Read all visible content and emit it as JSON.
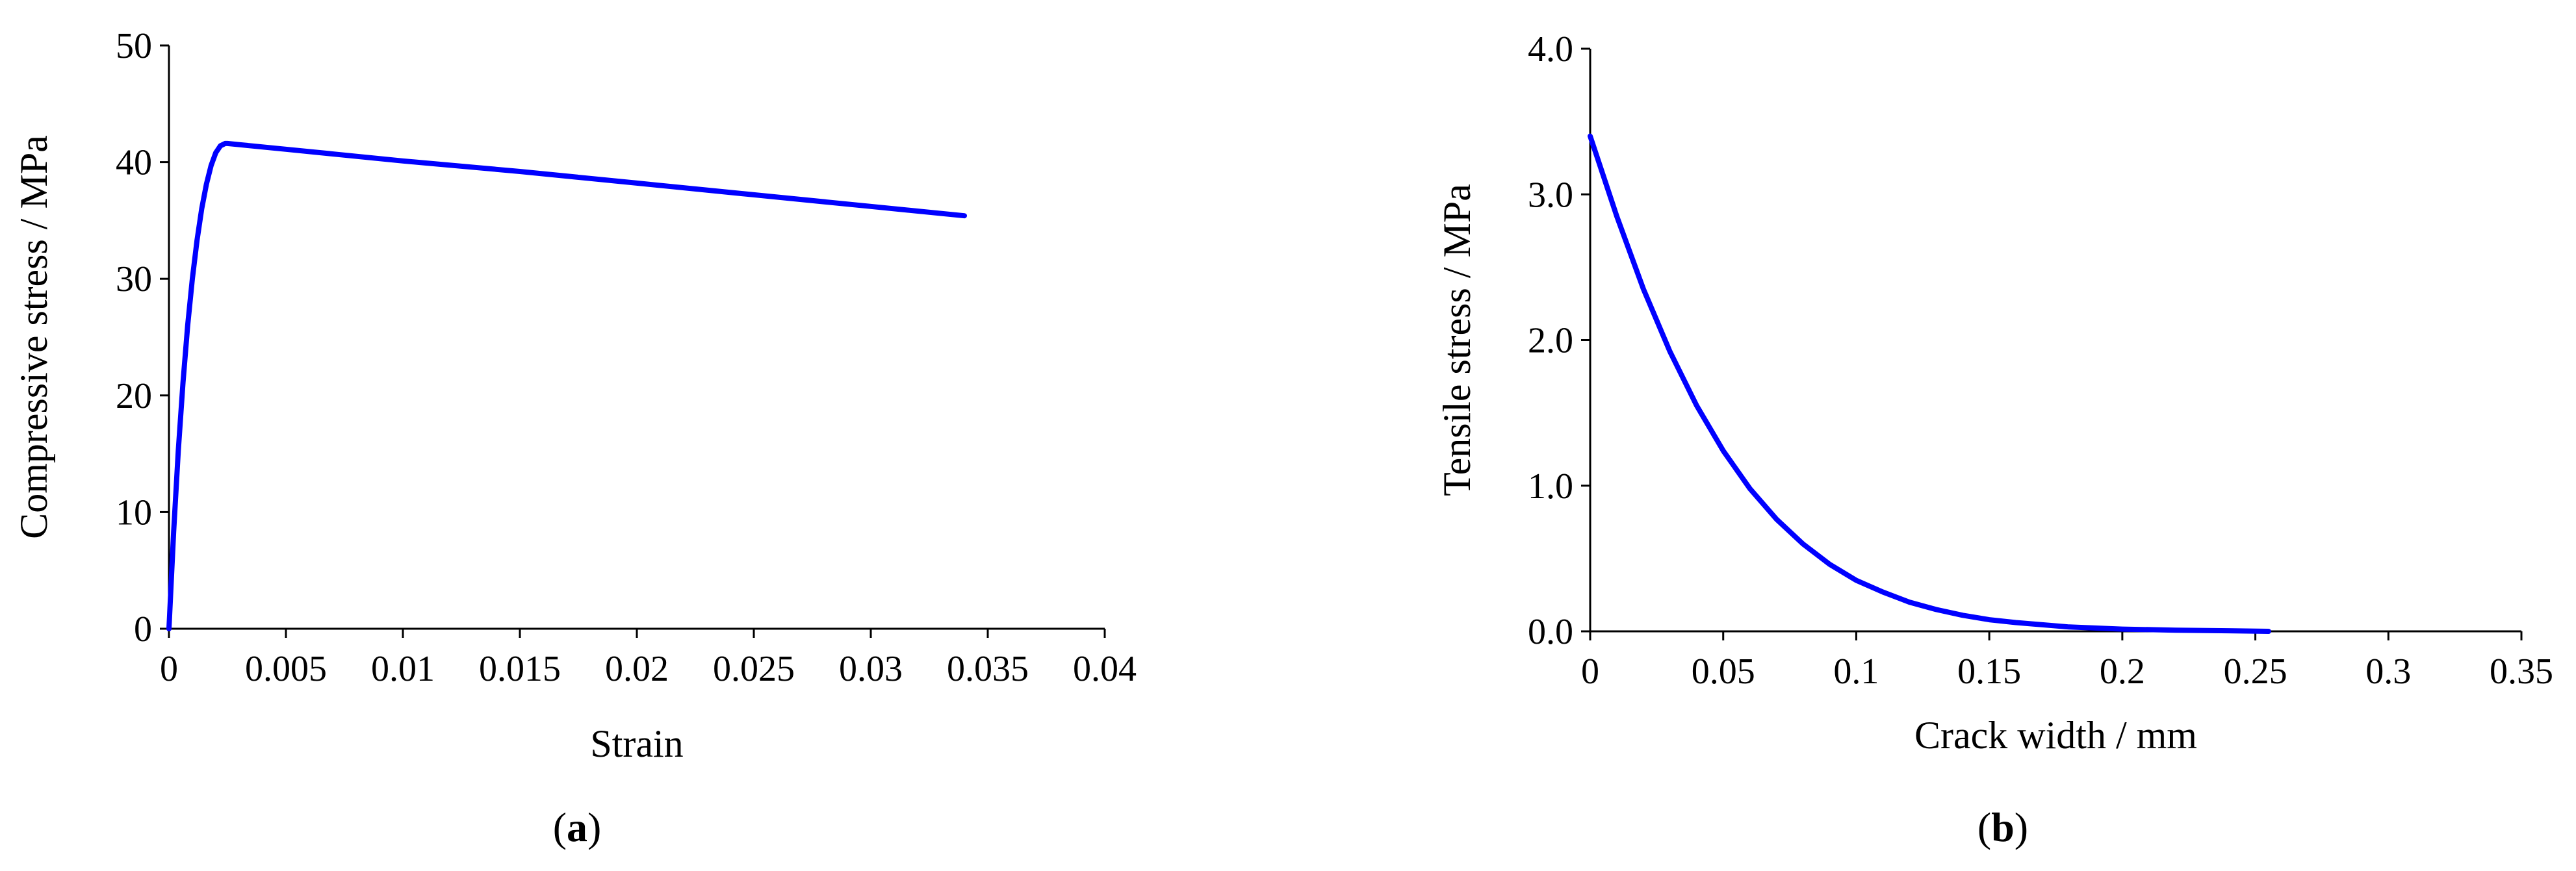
{
  "colors": {
    "series": "#0000ff",
    "axis": "#000000",
    "background": "#ffffff"
  },
  "chart_data": [
    {
      "type": "line",
      "panel_label": {
        "open": "(",
        "letter": "a",
        "close": ")"
      },
      "xlabel": "Strain",
      "ylabel": "Compressive stress / MPa",
      "xlim": [
        0,
        0.04
      ],
      "ylim": [
        0,
        50
      ],
      "x_ticks": [
        0,
        0.005,
        0.01,
        0.015,
        0.02,
        0.025,
        0.03,
        0.035,
        0.04
      ],
      "x_tick_labels": [
        "0",
        "0.005",
        "0.01",
        "0.015",
        "0.02",
        "0.025",
        "0.03",
        "0.035",
        "0.04"
      ],
      "y_ticks": [
        0,
        10,
        20,
        30,
        40,
        50
      ],
      "y_tick_labels": [
        "0",
        "10",
        "20",
        "30",
        "40",
        "50"
      ],
      "grid": false,
      "series": [
        {
          "x": [
            0,
            0.0002,
            0.0004,
            0.0006,
            0.0008,
            0.001,
            0.0012,
            0.0014,
            0.0016,
            0.0018,
            0.002,
            0.0022,
            0.0024,
            0.0025,
            0.003,
            0.005,
            0.01,
            0.015,
            0.02,
            0.025,
            0.03,
            0.034
          ],
          "y": [
            0,
            8.3,
            15.3,
            21.1,
            26.0,
            30.0,
            33.3,
            36.0,
            38.1,
            39.7,
            40.8,
            41.4,
            41.6,
            41.6,
            41.5,
            41.1,
            40.1,
            39.2,
            38.2,
            37.2,
            36.2,
            35.4
          ]
        }
      ]
    },
    {
      "type": "line",
      "panel_label": {
        "open": "(",
        "letter": "b",
        "close": ")"
      },
      "xlabel": "Crack width / mm",
      "ylabel": "Tensile stress / MPa",
      "xlim": [
        0,
        0.35
      ],
      "ylim": [
        0,
        4.0
      ],
      "x_ticks": [
        0,
        0.05,
        0.1,
        0.15,
        0.2,
        0.25,
        0.3,
        0.35
      ],
      "x_tick_labels": [
        "0",
        "0.05",
        "0.1",
        "0.15",
        "0.2",
        "0.25",
        "0.3",
        "0.35"
      ],
      "y_ticks": [
        0,
        1,
        2,
        3,
        4
      ],
      "y_tick_labels": [
        "0.0",
        "1.0",
        "2.0",
        "3.0",
        "4.0"
      ],
      "grid": false,
      "series": [
        {
          "x": [
            0,
            0.01,
            0.02,
            0.03,
            0.04,
            0.05,
            0.06,
            0.07,
            0.08,
            0.09,
            0.1,
            0.11,
            0.12,
            0.13,
            0.14,
            0.15,
            0.16,
            0.18,
            0.2,
            0.22,
            0.24,
            0.255
          ],
          "y": [
            3.4,
            2.85,
            2.35,
            1.92,
            1.55,
            1.24,
            0.98,
            0.77,
            0.6,
            0.46,
            0.35,
            0.27,
            0.2,
            0.15,
            0.11,
            0.08,
            0.06,
            0.03,
            0.015,
            0.008,
            0.004,
            0.0
          ]
        }
      ]
    }
  ]
}
